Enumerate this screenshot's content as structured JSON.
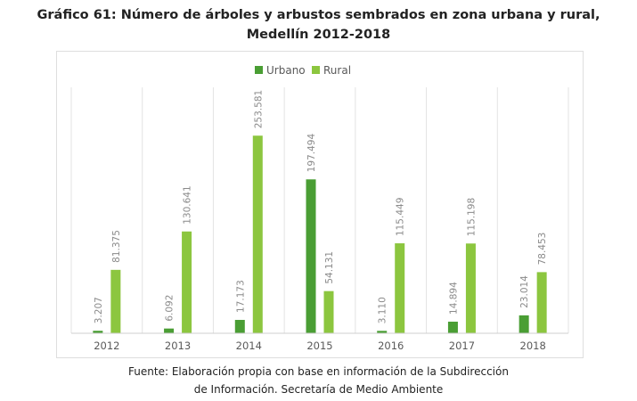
{
  "title_line1": "Gráfico 61: Número de árboles y arbustos sembrados en zona urbana y rural,",
  "title_line2": "Medellín 2012-2018",
  "source_line1": "Fuente: Elaboración propia con base en información de la  Subdirección",
  "source_line2": "de Información. Secretaría de Medio Ambiente",
  "colors": {
    "urbano": "#4a9e34",
    "rural": "#8cc63f",
    "grid": "#e3e3e3",
    "axis": "#cfcfcf",
    "label": "#8a8a8a",
    "tick": "#595959"
  },
  "chart_data": {
    "type": "bar",
    "categories": [
      "2012",
      "2013",
      "2014",
      "2015",
      "2016",
      "2017",
      "2018"
    ],
    "series": [
      {
        "name": "Urbano",
        "values": [
          3207,
          6092,
          17173,
          197494,
          3110,
          14894,
          23014
        ],
        "labels": [
          "3.207",
          "6.092",
          "17.173",
          "197.494",
          "3.110",
          "14.894",
          "23.014"
        ]
      },
      {
        "name": "Rural",
        "values": [
          81375,
          130641,
          253581,
          54131,
          115449,
          115198,
          78453
        ],
        "labels": [
          "81.375",
          "130.641",
          "253.581",
          "54.131",
          "115.449",
          "115.198",
          "78.453"
        ]
      }
    ],
    "legend_position": "top",
    "ylim": [
      0,
      255000
    ],
    "grid": "vertical category separators"
  }
}
